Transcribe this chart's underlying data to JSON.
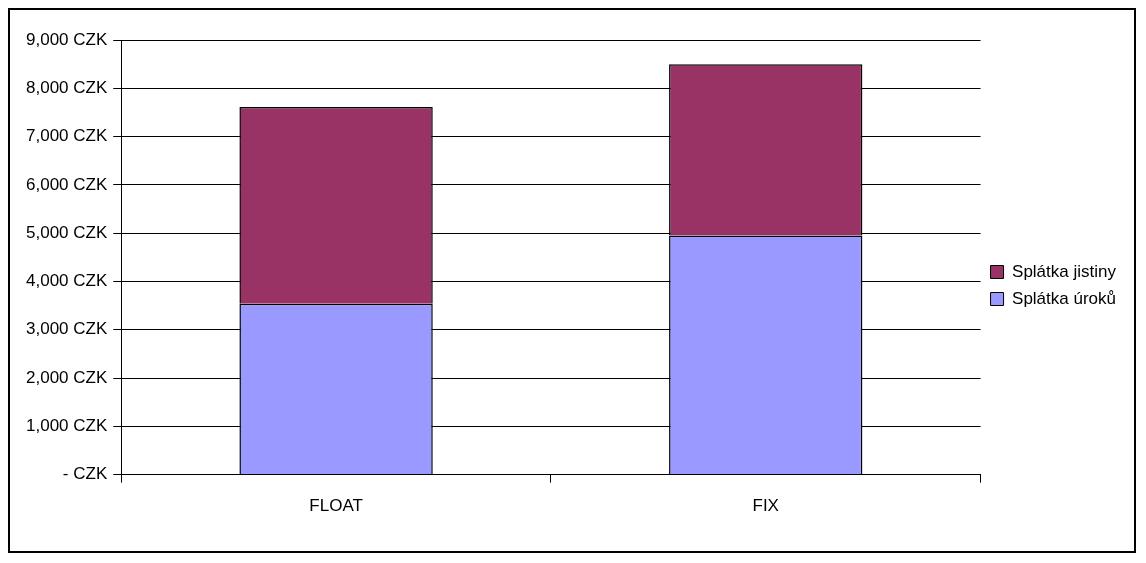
{
  "chart_data": {
    "type": "bar",
    "stacked": true,
    "categories": [
      "FLOAT",
      "FIX"
    ],
    "series": [
      {
        "name": "Splátka úroků",
        "color": "#9999ff",
        "values": [
          3540,
          4950
        ]
      },
      {
        "name": "Splátka jistiny",
        "color": "#993366",
        "values": [
          4070,
          3550
        ]
      }
    ],
    "ylim": [
      0,
      9000
    ],
    "yticks": [
      {
        "value": 0,
        "label": "- CZK"
      },
      {
        "value": 1000,
        "label": "1,000 CZK"
      },
      {
        "value": 2000,
        "label": "2,000 CZK"
      },
      {
        "value": 3000,
        "label": "3,000 CZK"
      },
      {
        "value": 4000,
        "label": "4,000 CZK"
      },
      {
        "value": 5000,
        "label": "5,000 CZK"
      },
      {
        "value": 6000,
        "label": "6,000 CZK"
      },
      {
        "value": 7000,
        "label": "7,000 CZK"
      },
      {
        "value": 8000,
        "label": "8,000 CZK"
      },
      {
        "value": 9000,
        "label": "9,000 CZK"
      }
    ],
    "grid": "y",
    "legend": "right"
  }
}
